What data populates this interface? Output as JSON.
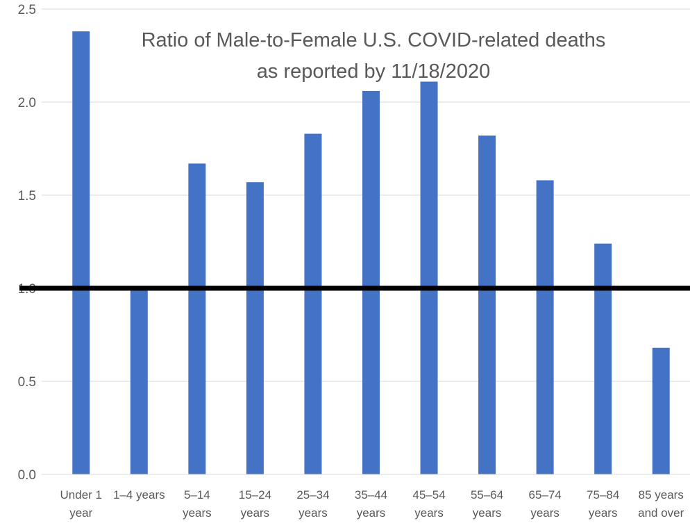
{
  "chart_data": {
    "type": "bar",
    "title": "Ratio of Male-to-Female U.S. COVID-related deaths",
    "subtitle": "as reported by 11/18/2020",
    "categories": [
      [
        "Under 1",
        "year"
      ],
      [
        "1–4 years"
      ],
      [
        "5–14",
        "years"
      ],
      [
        "15–24",
        "years"
      ],
      [
        "25–34",
        "years"
      ],
      [
        "35–44",
        "years"
      ],
      [
        "45–54",
        "years"
      ],
      [
        "55–64",
        "years"
      ],
      [
        "65–74",
        "years"
      ],
      [
        "75–84",
        "years"
      ],
      [
        "85 years",
        "and over"
      ]
    ],
    "values": [
      2.38,
      1.0,
      1.67,
      1.57,
      1.83,
      2.06,
      2.11,
      1.82,
      1.58,
      1.24,
      0.68
    ],
    "ylim": [
      0,
      2.5
    ],
    "yticks": [
      "0.0",
      "0.5",
      "1.0",
      "1.5",
      "2.0",
      "2.5"
    ],
    "reference_line": 1.0,
    "bar_color": "#4472c4",
    "reference_color": "#000000",
    "grid": true,
    "legend": "none"
  }
}
